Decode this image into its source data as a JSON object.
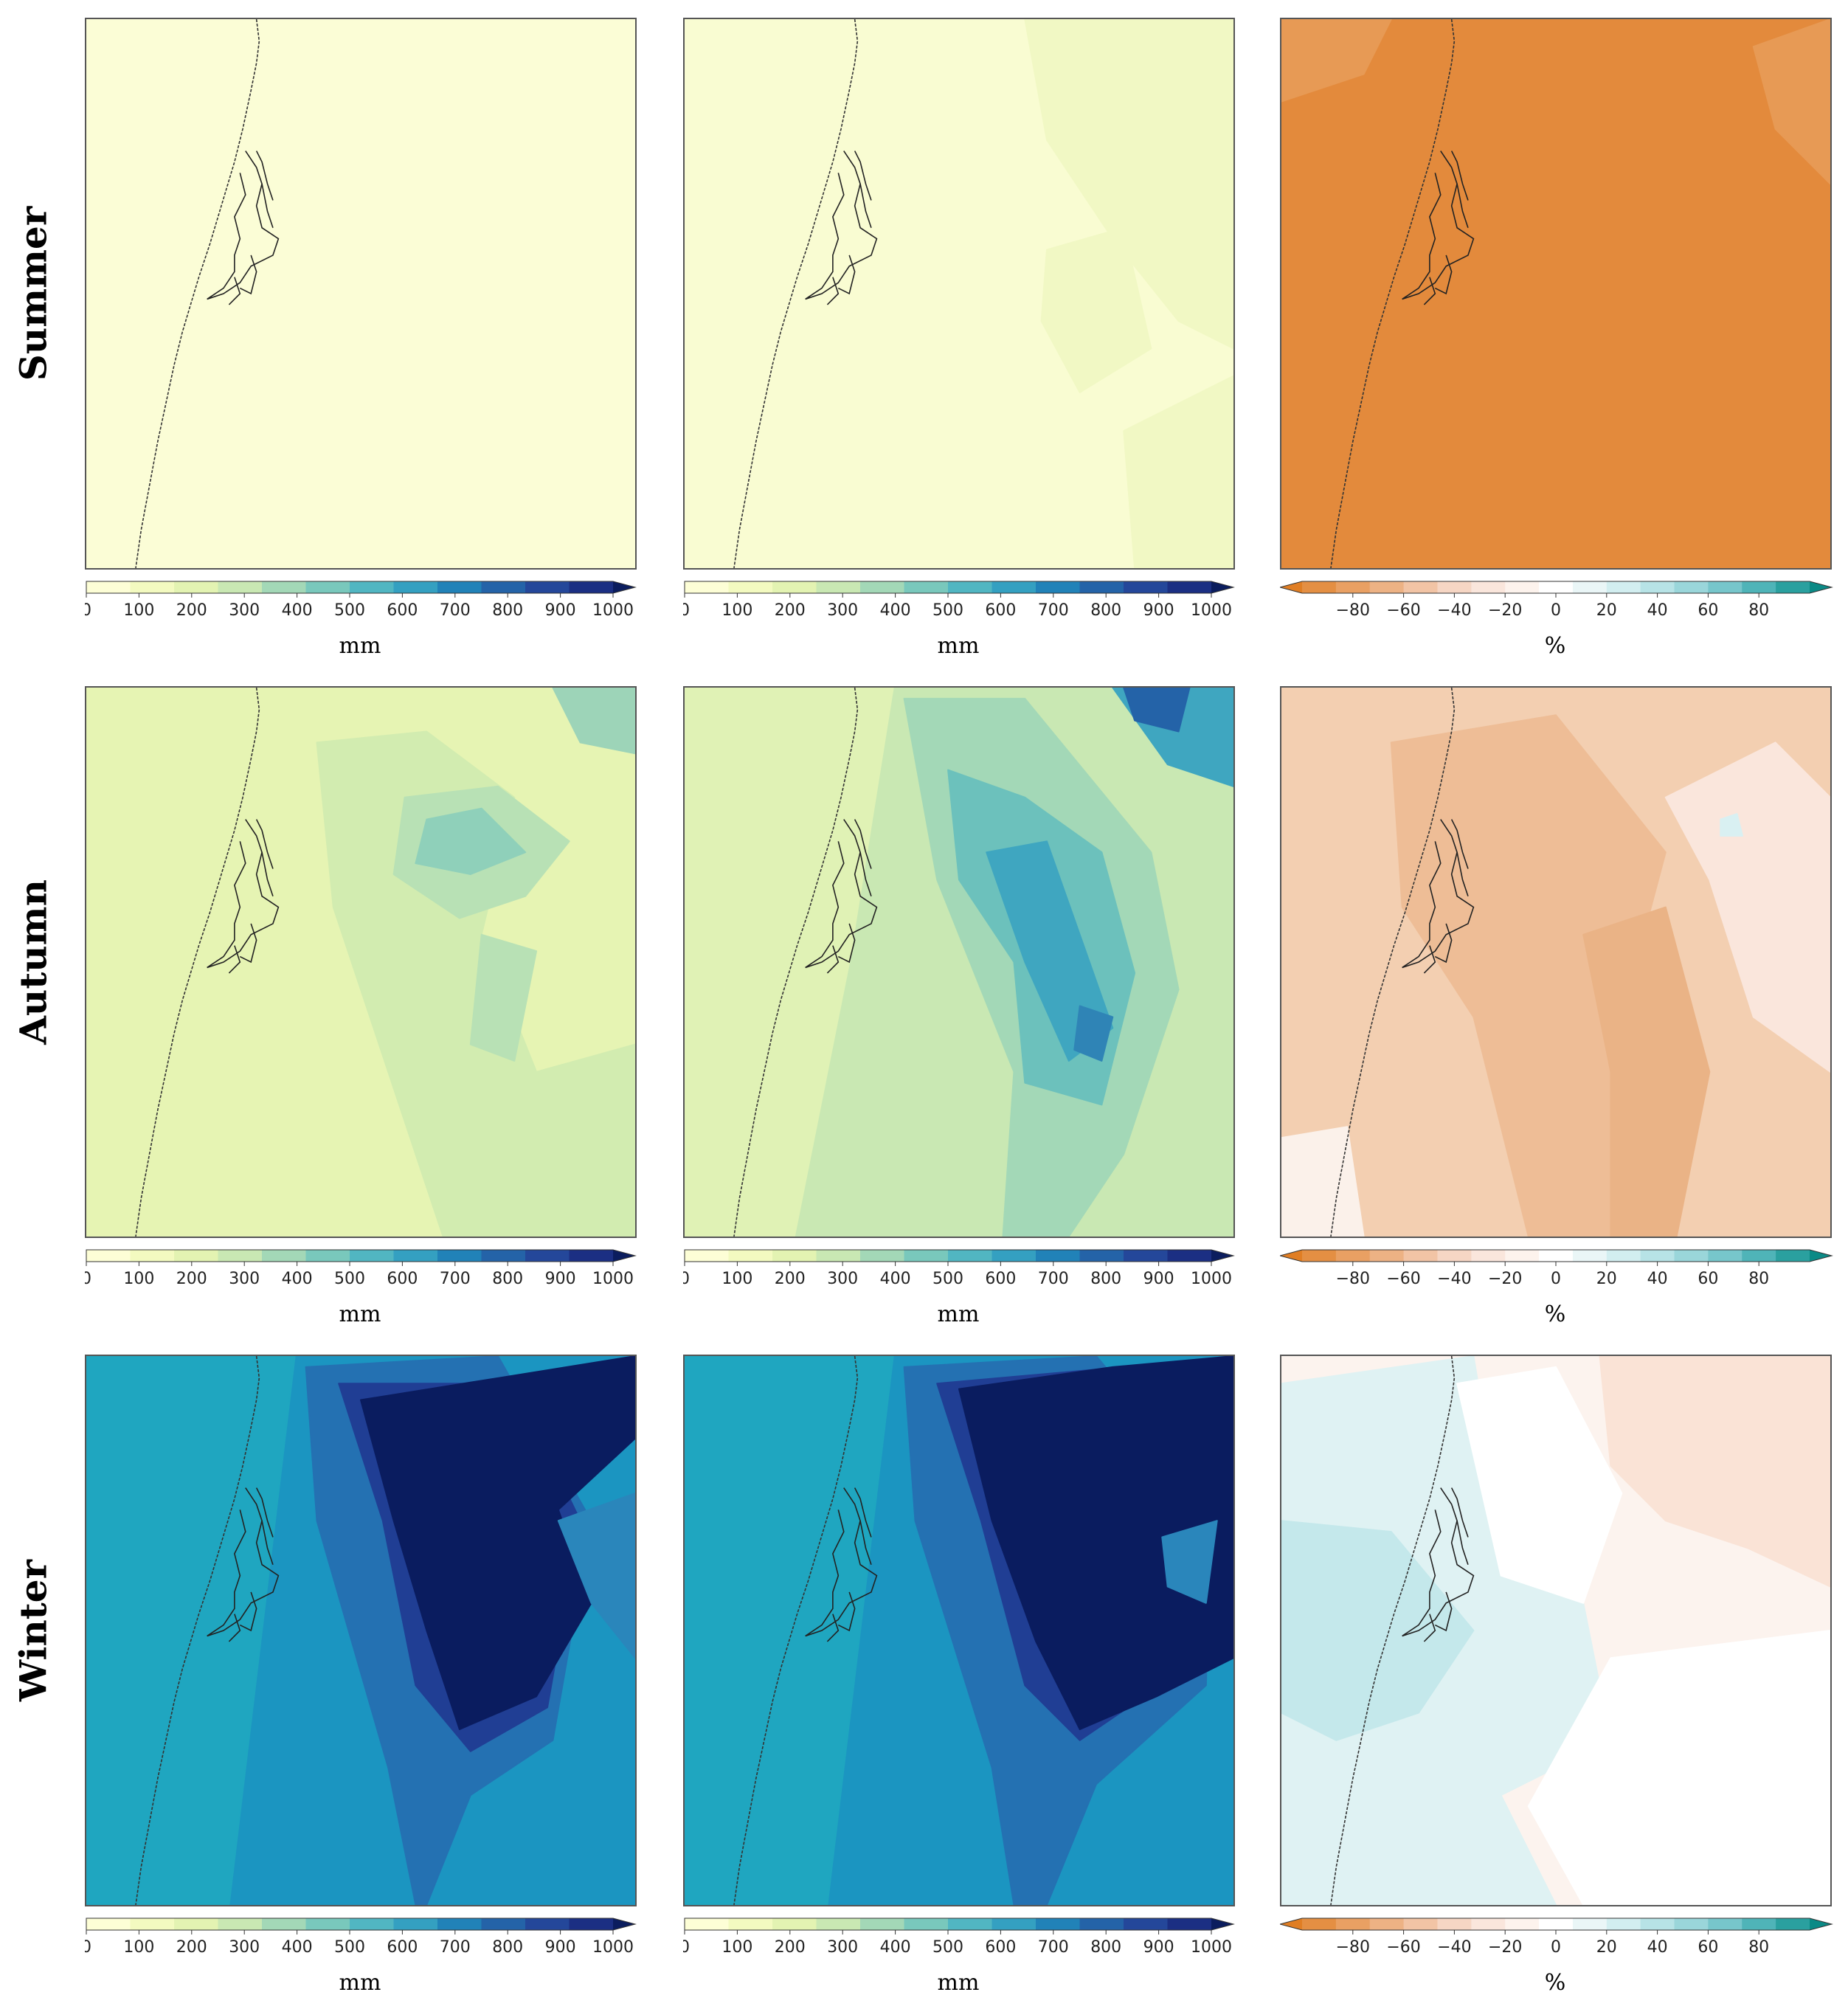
{
  "rows": [
    {
      "label": "Summer",
      "key": "summer"
    },
    {
      "label": "Autumn",
      "key": "autumn"
    },
    {
      "label": "Winter",
      "key": "winter"
    }
  ],
  "chart_data": [
    {
      "type": "heatmap",
      "row": "Summer",
      "column": 1,
      "unit": "mm",
      "range": [
        0,
        1000
      ],
      "colormap": "YlGnBu",
      "dominant_value_range": [
        0,
        100
      ]
    },
    {
      "type": "heatmap",
      "row": "Summer",
      "column": 2,
      "unit": "mm",
      "range": [
        0,
        1000
      ],
      "colormap": "YlGnBu",
      "dominant_value_range": [
        0,
        150
      ]
    },
    {
      "type": "heatmap",
      "row": "Summer",
      "column": 3,
      "unit": "%",
      "range": [
        -100,
        100
      ],
      "colormap": "BrBG",
      "dominant_value_range": [
        -80,
        -60
      ]
    },
    {
      "type": "heatmap",
      "row": "Autumn",
      "column": 1,
      "unit": "mm",
      "range": [
        0,
        1000
      ],
      "colormap": "YlGnBu",
      "dominant_value_range": [
        100,
        450
      ]
    },
    {
      "type": "heatmap",
      "row": "Autumn",
      "column": 2,
      "unit": "mm",
      "range": [
        0,
        1000
      ],
      "colormap": "YlGnBu",
      "dominant_value_range": [
        150,
        750
      ]
    },
    {
      "type": "heatmap",
      "row": "Autumn",
      "column": 3,
      "unit": "%",
      "range": [
        -100,
        100
      ],
      "colormap": "BrBG",
      "dominant_value_range": [
        -50,
        20
      ]
    },
    {
      "type": "heatmap",
      "row": "Winter",
      "column": 1,
      "unit": "mm",
      "range": [
        0,
        1000
      ],
      "colormap": "YlGnBu",
      "dominant_value_range": [
        450,
        1000
      ]
    },
    {
      "type": "heatmap",
      "row": "Winter",
      "column": 2,
      "unit": "mm",
      "range": [
        0,
        1000
      ],
      "colormap": "YlGnBu",
      "dominant_value_range": [
        450,
        1000
      ]
    },
    {
      "type": "heatmap",
      "row": "Winter",
      "column": 3,
      "unit": "%",
      "range": [
        -100,
        100
      ],
      "colormap": "BrBG",
      "dominant_value_range": [
        -20,
        20
      ]
    }
  ],
  "colorbars": {
    "precip": {
      "ticks": [
        "0",
        "100",
        "200",
        "300",
        "400",
        "500",
        "600",
        "700",
        "800",
        "900",
        "1000"
      ],
      "unit": "mm",
      "colors": [
        "#fdfed6",
        "#f3fac0",
        "#e3f3b2",
        "#c9e8b3",
        "#a3d8b7",
        "#79c8bc",
        "#51b6c2",
        "#34a0c1",
        "#2182b8",
        "#2463a8",
        "#24479a",
        "#1b2f83",
        "#0b1d5e"
      ]
    },
    "change": {
      "ticks": [
        "−80",
        "−60",
        "−40",
        "−20",
        "0",
        "20",
        "40",
        "60",
        "80"
      ],
      "unit": "%",
      "colors": [
        "#e07e24",
        "#e48f43",
        "#e9a063",
        "#edb284",
        "#f2c4a5",
        "#f6d6c4",
        "#fae6dc",
        "#fdf3ed",
        "#ffffff",
        "#eaf6f7",
        "#d2eef0",
        "#b7e3e6",
        "#9ad6da",
        "#77c6cb",
        "#4fb4b8",
        "#2aa09f",
        "#0b8a86"
      ]
    }
  }
}
